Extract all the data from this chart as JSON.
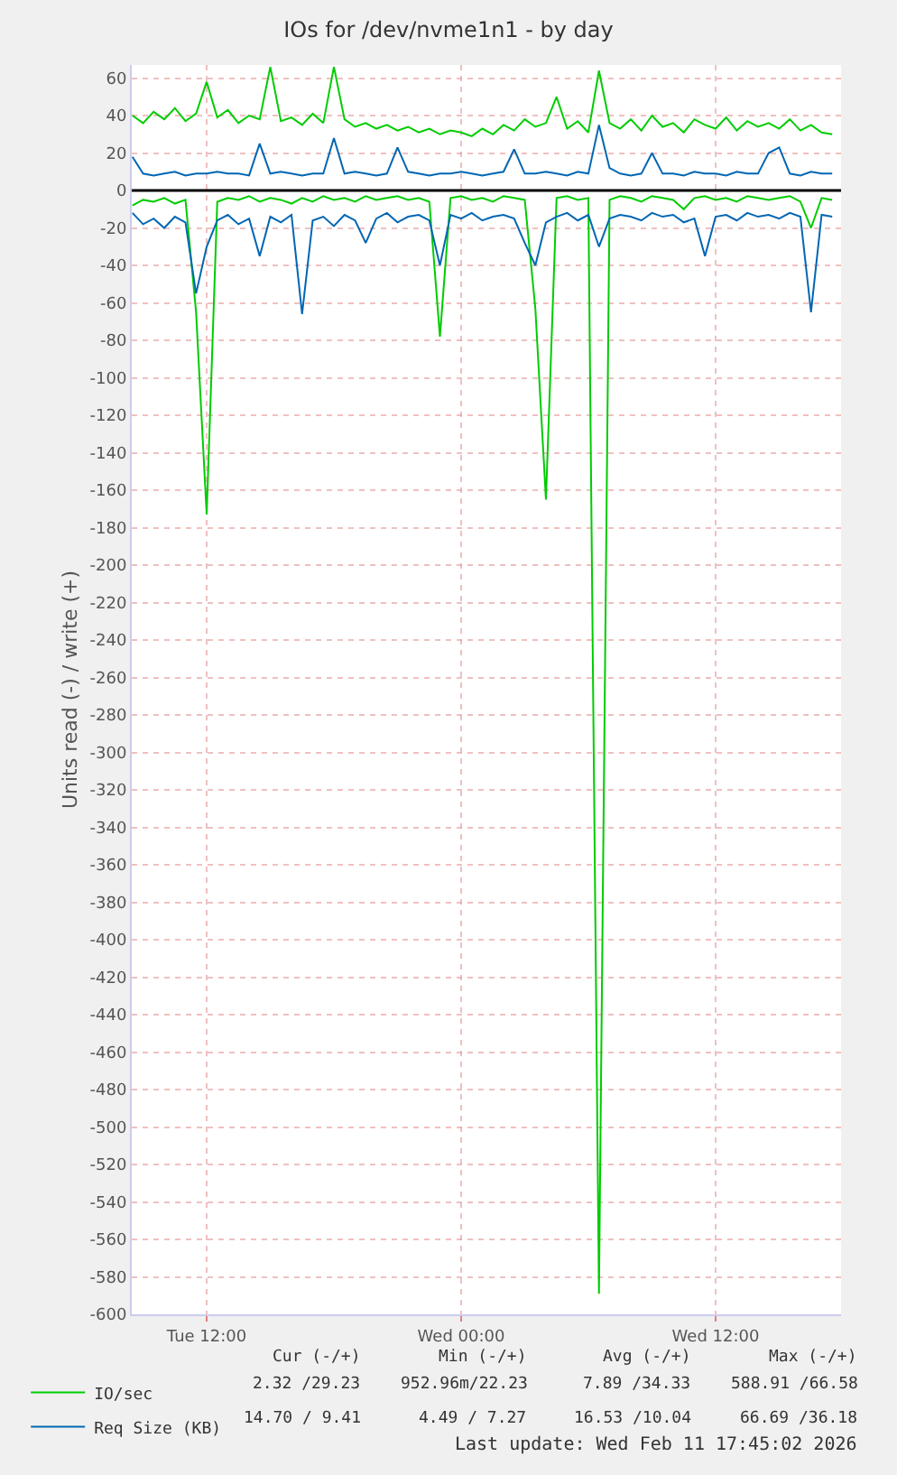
{
  "chart_data": {
    "type": "line",
    "title": "IOs for /dev/nvme1n1 - by day",
    "ylabel": "Units read (-) / write (+)",
    "x": [
      "2026-02-10T08:30",
      "2026-02-10T09:00",
      "2026-02-10T09:30",
      "2026-02-10T10:00",
      "2026-02-10T10:30",
      "2026-02-10T11:00",
      "2026-02-10T11:30",
      "2026-02-10T12:00",
      "2026-02-10T12:30",
      "2026-02-10T13:00",
      "2026-02-10T13:30",
      "2026-02-10T14:00",
      "2026-02-10T14:30",
      "2026-02-10T15:00",
      "2026-02-10T15:30",
      "2026-02-10T16:00",
      "2026-02-10T16:30",
      "2026-02-10T17:00",
      "2026-02-10T17:30",
      "2026-02-10T18:00",
      "2026-02-10T18:30",
      "2026-02-10T19:00",
      "2026-02-10T19:30",
      "2026-02-10T20:00",
      "2026-02-10T20:30",
      "2026-02-10T21:00",
      "2026-02-10T21:30",
      "2026-02-10T22:00",
      "2026-02-10T22:30",
      "2026-02-10T23:00",
      "2026-02-10T23:30",
      "2026-02-11T00:00",
      "2026-02-11T00:30",
      "2026-02-11T01:00",
      "2026-02-11T01:30",
      "2026-02-11T02:00",
      "2026-02-11T02:30",
      "2026-02-11T03:00",
      "2026-02-11T03:30",
      "2026-02-11T04:00",
      "2026-02-11T04:30",
      "2026-02-11T05:00",
      "2026-02-11T05:30",
      "2026-02-11T06:00",
      "2026-02-11T06:30",
      "2026-02-11T07:00",
      "2026-02-11T07:30",
      "2026-02-11T08:00",
      "2026-02-11T08:30",
      "2026-02-11T09:00",
      "2026-02-11T09:30",
      "2026-02-11T10:00",
      "2026-02-11T10:30",
      "2026-02-11T11:00",
      "2026-02-11T11:30",
      "2026-02-11T12:00",
      "2026-02-11T12:30",
      "2026-02-11T13:00",
      "2026-02-11T13:30",
      "2026-02-11T14:00",
      "2026-02-11T14:30",
      "2026-02-11T15:00",
      "2026-02-11T15:30",
      "2026-02-11T16:00",
      "2026-02-11T16:30",
      "2026-02-11T17:00",
      "2026-02-11T17:30"
    ],
    "series": [
      {
        "name": "IO/sec",
        "color": "#00cc00",
        "values": [
          40,
          36,
          42,
          38,
          44,
          37,
          41,
          58,
          39,
          43,
          36,
          40,
          38,
          66,
          37,
          39,
          35,
          41,
          36,
          66,
          38,
          34,
          36,
          33,
          35,
          32,
          34,
          31,
          33,
          30,
          32,
          31,
          29,
          33,
          30,
          35,
          32,
          38,
          34,
          36,
          50,
          33,
          37,
          31,
          64,
          36,
          33,
          38,
          32,
          40,
          34,
          36,
          31,
          38,
          35,
          33,
          39,
          32,
          37,
          34,
          36,
          33,
          38,
          32,
          35,
          31,
          30
        ]
      },
      {
        "color": "#00cc00",
        "values": [
          -8,
          -5,
          -6,
          -4,
          -7,
          -5,
          -65,
          -173,
          -6,
          -4,
          -5,
          -3,
          -6,
          -4,
          -5,
          -7,
          -4,
          -6,
          -3,
          -5,
          -4,
          -6,
          -3,
          -5,
          -4,
          -3,
          -5,
          -4,
          -6,
          -78,
          -4,
          -3,
          -5,
          -4,
          -6,
          -3,
          -4,
          -5,
          -63,
          -165,
          -4,
          -3,
          -5,
          -4,
          -589,
          -5,
          -3,
          -4,
          -6,
          -3,
          -4,
          -5,
          -10,
          -4,
          -3,
          -5,
          -4,
          -6,
          -3,
          -4,
          -5,
          -4,
          -3,
          -6,
          -20,
          -4,
          -5
        ]
      },
      {
        "name": "Req Size (KB)",
        "color": "#0066b3",
        "values": [
          18,
          9,
          8,
          9,
          10,
          8,
          9,
          9,
          10,
          9,
          9,
          8,
          25,
          9,
          10,
          9,
          8,
          9,
          9,
          28,
          9,
          10,
          9,
          8,
          9,
          23,
          10,
          9,
          8,
          9,
          9,
          10,
          9,
          8,
          9,
          10,
          22,
          9,
          9,
          10,
          9,
          8,
          10,
          9,
          35,
          12,
          9,
          8,
          9,
          20,
          9,
          9,
          8,
          10,
          9,
          9,
          8,
          10,
          9,
          9,
          20,
          23,
          9,
          8,
          10,
          9,
          9
        ]
      },
      {
        "color": "#0066b3",
        "values": [
          -12,
          -18,
          -15,
          -20,
          -14,
          -17,
          -55,
          -30,
          -16,
          -13,
          -18,
          -15,
          -35,
          -14,
          -17,
          -13,
          -66,
          -16,
          -14,
          -19,
          -13,
          -16,
          -28,
          -15,
          -12,
          -17,
          -14,
          -13,
          -16,
          -40,
          -13,
          -15,
          -12,
          -16,
          -14,
          -13,
          -15,
          -28,
          -40,
          -17,
          -14,
          -12,
          -16,
          -13,
          -30,
          -15,
          -13,
          -14,
          -16,
          -12,
          -14,
          -13,
          -17,
          -15,
          -35,
          -14,
          -13,
          -16,
          -12,
          -14,
          -13,
          -15,
          -12,
          -14,
          -65,
          -13,
          -14
        ]
      }
    ],
    "xlim": [
      "2026-02-10T08:28",
      "2026-02-11T17:55"
    ],
    "xticks": [
      {
        "value": "2026-02-10T12:00",
        "label": "Tue 12:00"
      },
      {
        "value": "2026-02-11T00:00",
        "label": "Wed 00:00"
      },
      {
        "value": "2026-02-11T12:00",
        "label": "Wed 12:00"
      }
    ],
    "ylim": [
      -600,
      67
    ],
    "yticks": [
      -600,
      -580,
      -560,
      -540,
      -520,
      -500,
      -480,
      -460,
      -440,
      -420,
      -400,
      -380,
      -360,
      -340,
      -320,
      -300,
      -280,
      -260,
      -240,
      -220,
      -200,
      -180,
      -160,
      -140,
      -120,
      -100,
      -80,
      -60,
      -40,
      -20,
      0,
      20,
      40,
      60
    ],
    "ref_lines": [
      {
        "axis": "y",
        "value": 0,
        "color": "#000000"
      }
    ],
    "grid": true,
    "legend": "bottom",
    "annotations": [
      "Cur (-/+)",
      "Min (-/+)",
      "Avg (-/+)",
      "Max (-/+)",
      "2.32 /29.23",
      "952.96m/22.23",
      "7.89 /34.33",
      "588.91 /66.58",
      "14.70 / 9.41",
      "4.49 / 7.27",
      "16.53 /10.04",
      "66.69 /36.18",
      "Last update: Wed Feb 11 17:45:02 2026"
    ]
  }
}
